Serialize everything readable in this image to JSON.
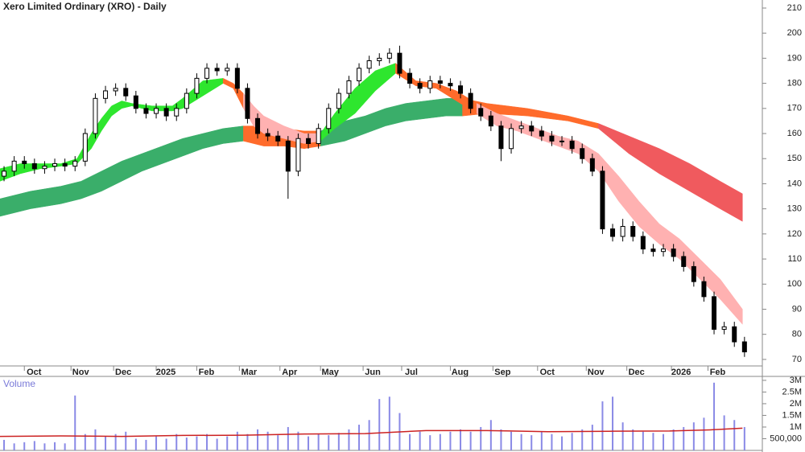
{
  "chart_data": [
    {
      "type": "candlestick",
      "title": "Xero Limited Ordinary (XRO) - Daily",
      "color": "#000000",
      "x": [
        2,
        7,
        12,
        17,
        22,
        27,
        32,
        37,
        42,
        47,
        52,
        57,
        62,
        67,
        72,
        77,
        82,
        87,
        92,
        97,
        102,
        107,
        112,
        117,
        122,
        127,
        132,
        137,
        142,
        147,
        152,
        157,
        162,
        167,
        172,
        177,
        182,
        187,
        192,
        197,
        202,
        207,
        212,
        217,
        222,
        227,
        232,
        237,
        242,
        247,
        252,
        257,
        262,
        267,
        272,
        277,
        282,
        287,
        292,
        297,
        302,
        307,
        312,
        317,
        322,
        327,
        332,
        337,
        342,
        347,
        352,
        357,
        362,
        367
      ],
      "open": [
        143,
        145,
        149,
        148,
        146,
        147,
        148,
        147,
        149,
        160,
        174,
        177,
        178,
        175,
        170,
        168,
        170,
        167,
        170,
        176,
        182,
        186,
        185,
        186,
        178,
        166,
        160,
        159,
        157,
        145,
        158,
        156,
        162,
        170,
        176,
        181,
        186,
        189,
        190,
        192,
        184,
        180,
        178,
        181,
        180,
        179,
        176,
        170,
        167,
        163,
        154,
        162,
        163,
        161,
        159,
        157,
        157,
        154,
        150,
        145,
        122,
        119,
        123,
        119,
        114,
        113,
        114,
        111,
        107,
        101,
        95,
        82,
        83,
        77
      ],
      "high": [
        147,
        151,
        151,
        150,
        149,
        150,
        150,
        151,
        162,
        176,
        179,
        180,
        180,
        177,
        172,
        172,
        172,
        172,
        178,
        184,
        188,
        188,
        188,
        188,
        180,
        168,
        162,
        161,
        159,
        160,
        160,
        164,
        172,
        178,
        183,
        188,
        191,
        192,
        194,
        195,
        186,
        182,
        183,
        183,
        182,
        181,
        178,
        172,
        169,
        165,
        164,
        165,
        165,
        163,
        161,
        159,
        159,
        156,
        152,
        147,
        124,
        126,
        125,
        121,
        116,
        116,
        116,
        113,
        109,
        103,
        97,
        85,
        85,
        79
      ],
      "low": [
        141,
        143,
        146,
        144,
        144,
        145,
        145,
        145,
        147,
        158,
        172,
        175,
        173,
        168,
        166,
        166,
        165,
        165,
        168,
        174,
        180,
        183,
        183,
        176,
        164,
        158,
        157,
        155,
        134,
        143,
        154,
        154,
        160,
        168,
        174,
        179,
        184,
        187,
        188,
        182,
        178,
        176,
        176,
        178,
        177,
        174,
        168,
        165,
        161,
        149,
        152,
        160,
        159,
        157,
        155,
        155,
        152,
        148,
        143,
        120,
        117,
        117,
        117,
        112,
        111,
        111,
        109,
        105,
        99,
        93,
        80,
        80,
        75,
        71
      ],
      "close": [
        145,
        149,
        148,
        146,
        147,
        148,
        147,
        149,
        160,
        174,
        177,
        178,
        175,
        170,
        168,
        170,
        167,
        170,
        176,
        182,
        186,
        185,
        186,
        178,
        166,
        160,
        159,
        157,
        145,
        158,
        156,
        162,
        170,
        176,
        181,
        186,
        189,
        190,
        192,
        184,
        180,
        178,
        181,
        180,
        179,
        176,
        170,
        167,
        163,
        154,
        162,
        163,
        161,
        159,
        157,
        157,
        154,
        150,
        145,
        122,
        119,
        123,
        119,
        114,
        113,
        114,
        111,
        107,
        101,
        95,
        82,
        83,
        77,
        73
      ],
      "bands": [
        {
          "color": "#3aae6a",
          "x": [
            0,
            15,
            30,
            40,
            50,
            60,
            70,
            80,
            90,
            100,
            110,
            120
          ],
          "upper": [
            134,
            137,
            139,
            141,
            145,
            149,
            152,
            155,
            158,
            160,
            162,
            163
          ],
          "lower": [
            127,
            130,
            132,
            134,
            137,
            141,
            145,
            148,
            151,
            154,
            156,
            157
          ]
        },
        {
          "color": "#ff6b2b",
          "x": [
            120,
            130,
            140,
            150,
            158
          ],
          "upper": [
            163,
            163,
            162,
            161,
            161
          ],
          "lower": [
            157,
            155,
            155,
            154,
            155
          ]
        },
        {
          "color": "#3aae6a",
          "x": [
            158,
            170,
            180,
            190,
            200,
            210,
            220,
            228
          ],
          "upper": [
            161,
            165,
            167,
            170,
            172,
            173,
            174,
            174
          ],
          "lower": [
            155,
            157,
            160,
            163,
            165,
            166,
            167,
            167
          ]
        },
        {
          "color": "#ff6b2b",
          "x": [
            228,
            240,
            260,
            280,
            295
          ],
          "upper": [
            174,
            172,
            170,
            167,
            164
          ],
          "lower": [
            167,
            168,
            167,
            165,
            162
          ]
        },
        {
          "color": "#f05a5e",
          "x": [
            295,
            310,
            325,
            340,
            355,
            366
          ],
          "upper": [
            164,
            159,
            154,
            148,
            141,
            136
          ],
          "lower": [
            162,
            152,
            144,
            137,
            130,
            125
          ]
        },
        {
          "color": "#2ee62e",
          "x": [
            0,
            10,
            20,
            30,
            38,
            45,
            50,
            55,
            60,
            65,
            75,
            85,
            90,
            100,
            110
          ],
          "upper": [
            146,
            148,
            148,
            148,
            150,
            160,
            166,
            171,
            173,
            172,
            171,
            171,
            174,
            181,
            182
          ],
          "lower": [
            141,
            144,
            146,
            147,
            148,
            154,
            161,
            167,
            170,
            171,
            169,
            169,
            170,
            175,
            180
          ]
        },
        {
          "color": "#ff6b2b",
          "x": [
            110,
            115,
            120
          ],
          "upper": [
            182,
            180,
            176
          ],
          "lower": [
            180,
            178,
            170
          ]
        },
        {
          "color": "#ffb1b1",
          "x": [
            120,
            125,
            130,
            140,
            150,
            158
          ],
          "upper": [
            176,
            171,
            167,
            163,
            160,
            160
          ],
          "lower": [
            170,
            163,
            160,
            158,
            156,
            157
          ]
        },
        {
          "color": "#2ee62e",
          "x": [
            158,
            165,
            175,
            185,
            195
          ],
          "upper": [
            160,
            168,
            178,
            185,
            188
          ],
          "lower": [
            157,
            162,
            168,
            177,
            184
          ]
        },
        {
          "color": "#ff6b2b",
          "x": [
            195,
            205,
            215,
            225,
            235
          ],
          "upper": [
            188,
            181,
            180,
            177,
            172
          ],
          "lower": [
            184,
            179,
            178,
            173,
            168
          ]
        },
        {
          "color": "#ffb1b1",
          "x": [
            235,
            245,
            255,
            265,
            275,
            285,
            295,
            305,
            315,
            325,
            335,
            345,
            355,
            366
          ],
          "upper": [
            172,
            168,
            165,
            162,
            159,
            157,
            152,
            143,
            133,
            124,
            118,
            110,
            102,
            90
          ],
          "lower": [
            168,
            163,
            161,
            158,
            155,
            152,
            145,
            133,
            123,
            116,
            110,
            102,
            94,
            84
          ]
        }
      ],
      "xlim": [
        0,
        375
      ],
      "ylim": [
        67.4,
        213.2
      ],
      "yticks": [
        70,
        80,
        90,
        100,
        110,
        120,
        130,
        140,
        150,
        160,
        170,
        180,
        190,
        200,
        210
      ],
      "xticks": [
        {
          "value": 12,
          "label": "Oct"
        },
        {
          "value": 35,
          "label": "Nov"
        },
        {
          "value": 56,
          "label": "Dec"
        },
        {
          "value": 77,
          "label": "2025"
        },
        {
          "value": 97,
          "label": "Feb"
        },
        {
          "value": 118,
          "label": "Mar"
        },
        {
          "value": 138,
          "label": "Apr"
        },
        {
          "value": 158,
          "label": "May"
        },
        {
          "value": 179,
          "label": "Jun"
        },
        {
          "value": 198,
          "label": "Jul"
        },
        {
          "value": 222,
          "label": "Aug"
        },
        {
          "value": 243,
          "label": "Sep"
        },
        {
          "value": 265,
          "label": "Oct"
        },
        {
          "value": 289,
          "label": "Nov"
        },
        {
          "value": 309,
          "label": "Dec"
        },
        {
          "value": 331,
          "label": "2026"
        },
        {
          "value": 349,
          "label": "Feb"
        }
      ]
    },
    {
      "type": "bar",
      "title": "Volume",
      "color": "#8a8ae6",
      "x": [
        2,
        7,
        12,
        17,
        22,
        27,
        32,
        37,
        42,
        47,
        52,
        57,
        62,
        67,
        72,
        77,
        82,
        87,
        92,
        97,
        102,
        107,
        112,
        117,
        122,
        127,
        132,
        137,
        142,
        147,
        152,
        157,
        162,
        167,
        172,
        177,
        182,
        187,
        192,
        197,
        202,
        207,
        212,
        217,
        222,
        227,
        232,
        237,
        242,
        247,
        252,
        257,
        262,
        267,
        272,
        277,
        282,
        287,
        292,
        297,
        302,
        307,
        312,
        317,
        322,
        327,
        332,
        337,
        342,
        347,
        352,
        357,
        362,
        367
      ],
      "values": [
        450000,
        300000,
        350000,
        400000,
        300000,
        350000,
        300000,
        2350000,
        700000,
        900000,
        600000,
        700000,
        800000,
        500000,
        450000,
        600000,
        500000,
        700000,
        550000,
        600000,
        700000,
        500000,
        600000,
        800000,
        700000,
        900000,
        800000,
        650000,
        1000000,
        800000,
        600000,
        700000,
        650000,
        750000,
        900000,
        1100000,
        1300000,
        2200000,
        2300000,
        1600000,
        700000,
        800000,
        650000,
        700000,
        800000,
        900000,
        800000,
        1000000,
        1300000,
        900000,
        800000,
        700000,
        650000,
        800000,
        700000,
        600000,
        750000,
        900000,
        1100000,
        2100000,
        2300000,
        1200000,
        900000,
        800000,
        750000,
        700000,
        900000,
        1000000,
        1200000,
        1400000,
        2900000,
        1500000,
        1300000,
        1000000
      ],
      "lines": [
        {
          "color": "#cc2222",
          "x": [
            0,
            30,
            60,
            90,
            120,
            150,
            180,
            210,
            240,
            270,
            300,
            330,
            350,
            366
          ],
          "values": [
            600000,
            620000,
            600000,
            640000,
            650000,
            700000,
            720000,
            850000,
            850000,
            800000,
            820000,
            830000,
            880000,
            950000
          ]
        }
      ],
      "xlim": [
        0,
        375
      ],
      "ylim": [
        0,
        3100000
      ],
      "yticks": [
        {
          "value": 500000,
          "label": "500,000"
        },
        {
          "value": 1000000,
          "label": "1M"
        },
        {
          "value": 1500000,
          "label": "1.5M"
        },
        {
          "value": 2000000,
          "label": "2M"
        },
        {
          "value": 2500000,
          "label": "2.5M"
        },
        {
          "value": 3000000,
          "label": "3M"
        }
      ]
    }
  ]
}
